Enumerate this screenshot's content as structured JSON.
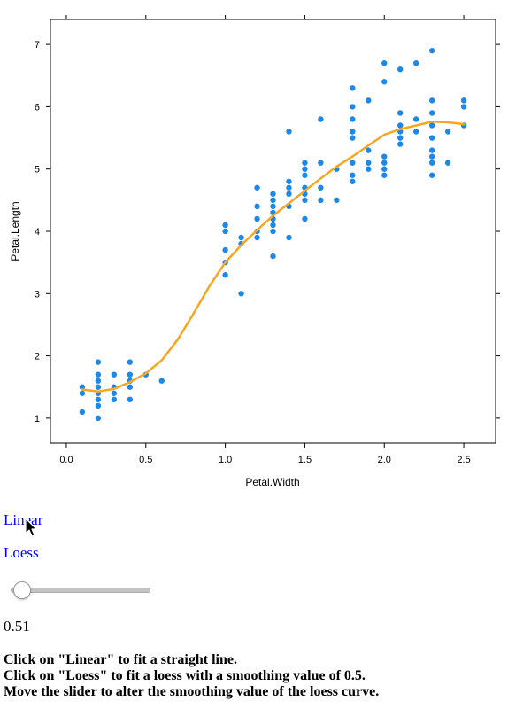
{
  "chart_data": {
    "type": "scatter",
    "xlabel": "Petal.Width",
    "ylabel": "Petal.Length",
    "xlim": [
      -0.1,
      2.7
    ],
    "ylim": [
      0.6,
      7.4
    ],
    "xticks": [
      "0.0",
      "0.5",
      "1.0",
      "1.5",
      "2.0",
      "2.5"
    ],
    "yticks": [
      "1",
      "2",
      "3",
      "4",
      "5",
      "6",
      "7"
    ],
    "grid": false,
    "point_color": "#1e88e5",
    "line_color": "#f5a623",
    "points": [
      [
        0.1,
        1.1
      ],
      [
        0.1,
        1.4
      ],
      [
        0.1,
        1.5
      ],
      [
        0.2,
        1.0
      ],
      [
        0.2,
        1.2
      ],
      [
        0.2,
        1.3
      ],
      [
        0.2,
        1.4
      ],
      [
        0.2,
        1.5
      ],
      [
        0.2,
        1.6
      ],
      [
        0.2,
        1.7
      ],
      [
        0.2,
        1.9
      ],
      [
        0.3,
        1.3
      ],
      [
        0.3,
        1.4
      ],
      [
        0.3,
        1.5
      ],
      [
        0.3,
        1.7
      ],
      [
        0.4,
        1.3
      ],
      [
        0.4,
        1.5
      ],
      [
        0.4,
        1.6
      ],
      [
        0.4,
        1.7
      ],
      [
        0.4,
        1.9
      ],
      [
        0.5,
        1.7
      ],
      [
        0.6,
        1.6
      ],
      [
        1.0,
        3.3
      ],
      [
        1.0,
        3.5
      ],
      [
        1.0,
        3.7
      ],
      [
        1.0,
        4.0
      ],
      [
        1.0,
        4.1
      ],
      [
        1.1,
        3.0
      ],
      [
        1.1,
        3.8
      ],
      [
        1.1,
        3.9
      ],
      [
        1.2,
        3.9
      ],
      [
        1.2,
        4.0
      ],
      [
        1.2,
        4.2
      ],
      [
        1.2,
        4.4
      ],
      [
        1.2,
        4.7
      ],
      [
        1.3,
        3.6
      ],
      [
        1.3,
        4.0
      ],
      [
        1.3,
        4.1
      ],
      [
        1.3,
        4.2
      ],
      [
        1.3,
        4.3
      ],
      [
        1.3,
        4.4
      ],
      [
        1.3,
        4.5
      ],
      [
        1.3,
        4.6
      ],
      [
        1.4,
        3.9
      ],
      [
        1.4,
        4.4
      ],
      [
        1.4,
        4.6
      ],
      [
        1.4,
        4.7
      ],
      [
        1.4,
        4.8
      ],
      [
        1.4,
        5.6
      ],
      [
        1.5,
        4.2
      ],
      [
        1.5,
        4.5
      ],
      [
        1.5,
        4.6
      ],
      [
        1.5,
        4.7
      ],
      [
        1.5,
        4.9
      ],
      [
        1.5,
        5.0
      ],
      [
        1.5,
        5.1
      ],
      [
        1.6,
        4.5
      ],
      [
        1.6,
        4.7
      ],
      [
        1.6,
        5.1
      ],
      [
        1.6,
        5.8
      ],
      [
        1.7,
        4.5
      ],
      [
        1.7,
        5.0
      ],
      [
        1.8,
        4.8
      ],
      [
        1.8,
        4.9
      ],
      [
        1.8,
        5.1
      ],
      [
        1.8,
        5.5
      ],
      [
        1.8,
        5.6
      ],
      [
        1.8,
        5.8
      ],
      [
        1.8,
        6.0
      ],
      [
        1.8,
        6.3
      ],
      [
        1.9,
        5.0
      ],
      [
        1.9,
        5.1
      ],
      [
        1.9,
        5.3
      ],
      [
        1.9,
        6.1
      ],
      [
        2.0,
        4.9
      ],
      [
        2.0,
        5.0
      ],
      [
        2.0,
        5.1
      ],
      [
        2.0,
        5.2
      ],
      [
        2.0,
        6.4
      ],
      [
        2.0,
        6.7
      ],
      [
        2.1,
        5.4
      ],
      [
        2.1,
        5.5
      ],
      [
        2.1,
        5.6
      ],
      [
        2.1,
        5.7
      ],
      [
        2.1,
        5.9
      ],
      [
        2.1,
        6.6
      ],
      [
        2.2,
        5.6
      ],
      [
        2.2,
        5.8
      ],
      [
        2.2,
        6.7
      ],
      [
        2.3,
        4.9
      ],
      [
        2.3,
        5.1
      ],
      [
        2.3,
        5.2
      ],
      [
        2.3,
        5.3
      ],
      [
        2.3,
        5.5
      ],
      [
        2.3,
        5.7
      ],
      [
        2.3,
        5.9
      ],
      [
        2.3,
        6.1
      ],
      [
        2.3,
        6.9
      ],
      [
        2.4,
        5.1
      ],
      [
        2.4,
        5.6
      ],
      [
        2.5,
        5.7
      ],
      [
        2.5,
        6.0
      ],
      [
        2.5,
        6.1
      ]
    ],
    "loess_curve": [
      [
        0.1,
        1.46
      ],
      [
        0.2,
        1.43
      ],
      [
        0.3,
        1.47
      ],
      [
        0.4,
        1.58
      ],
      [
        0.5,
        1.72
      ],
      [
        0.6,
        1.93
      ],
      [
        0.7,
        2.26
      ],
      [
        0.8,
        2.68
      ],
      [
        0.9,
        3.12
      ],
      [
        1.0,
        3.5
      ],
      [
        1.1,
        3.78
      ],
      [
        1.2,
        4.02
      ],
      [
        1.3,
        4.25
      ],
      [
        1.4,
        4.45
      ],
      [
        1.5,
        4.65
      ],
      [
        1.6,
        4.85
      ],
      [
        1.7,
        5.04
      ],
      [
        1.8,
        5.2
      ],
      [
        1.9,
        5.38
      ],
      [
        2.0,
        5.55
      ],
      [
        2.1,
        5.64
      ],
      [
        2.2,
        5.7
      ],
      [
        2.3,
        5.76
      ],
      [
        2.4,
        5.75
      ],
      [
        2.5,
        5.72
      ]
    ]
  },
  "controls": {
    "linear_label": "Linear",
    "loess_label": "Loess",
    "slider": {
      "min": 0.5,
      "max": 1.0,
      "value": 0.51
    },
    "slider_value_text": "0.51"
  },
  "instructions": [
    "Click on \"Linear\" to fit a straight line.",
    "Click on \"Loess\" to fit a loess with a smoothing value of 0.5.",
    "Move the slider to alter the smoothing value of the loess curve."
  ]
}
